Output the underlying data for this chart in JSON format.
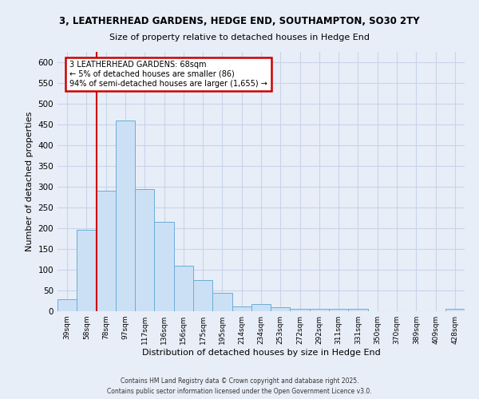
{
  "title_line1": "3, LEATHERHEAD GARDENS, HEDGE END, SOUTHAMPTON, SO30 2TY",
  "title_line2": "Size of property relative to detached houses in Hedge End",
  "xlabel": "Distribution of detached houses by size in Hedge End",
  "ylabel": "Number of detached properties",
  "categories": [
    "39sqm",
    "58sqm",
    "78sqm",
    "97sqm",
    "117sqm",
    "136sqm",
    "156sqm",
    "175sqm",
    "195sqm",
    "214sqm",
    "234sqm",
    "253sqm",
    "272sqm",
    "292sqm",
    "311sqm",
    "331sqm",
    "350sqm",
    "370sqm",
    "389sqm",
    "409sqm",
    "428sqm"
  ],
  "values": [
    28,
    197,
    290,
    460,
    295,
    215,
    110,
    75,
    45,
    12,
    18,
    9,
    5,
    5,
    6,
    5,
    0,
    0,
    0,
    0,
    5
  ],
  "bar_color": "#cce0f5",
  "bar_edge_color": "#6aaed6",
  "grid_color": "#c8d4e8",
  "background_color": "#e8eef8",
  "red_line_x": 1.5,
  "annotation_title": "3 LEATHERHEAD GARDENS: 68sqm",
  "annotation_line2": "← 5% of detached houses are smaller (86)",
  "annotation_line3": "94% of semi-detached houses are larger (1,655) →",
  "annotation_box_color": "#ffffff",
  "annotation_box_edge": "#cc0000",
  "red_line_color": "#cc0000",
  "footer_line1": "Contains HM Land Registry data © Crown copyright and database right 2025.",
  "footer_line2": "Contains public sector information licensed under the Open Government Licence v3.0.",
  "ylim": [
    0,
    625
  ],
  "yticks": [
    0,
    50,
    100,
    150,
    200,
    250,
    300,
    350,
    400,
    450,
    500,
    550,
    600
  ]
}
